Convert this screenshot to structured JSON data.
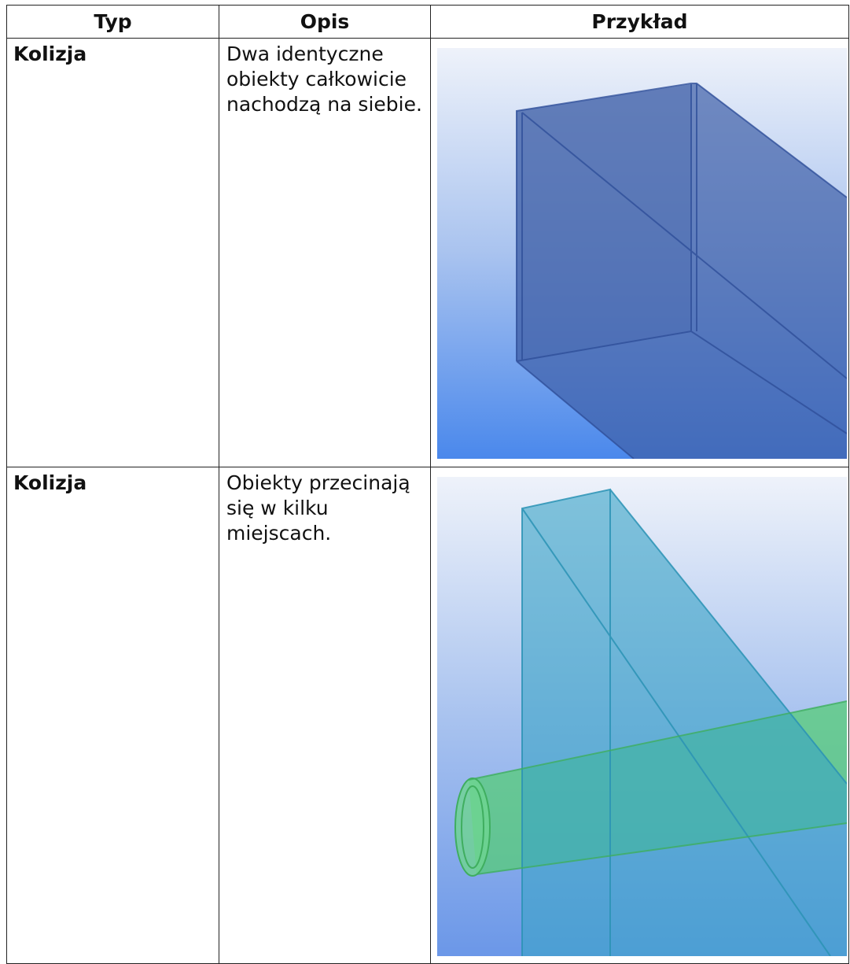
{
  "table": {
    "headers": [
      "Typ",
      "Opis",
      "Przykład"
    ],
    "rows": [
      [
        "Kolizja",
        "Dwa identyczne obiekty całkowicie nachodzą na siebie."
      ],
      [
        "Kolizja",
        "Obiekty przecinają się w kilku miejscach."
      ]
    ]
  }
}
